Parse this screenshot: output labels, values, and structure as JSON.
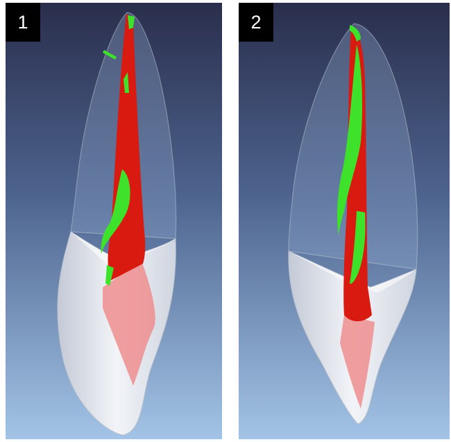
{
  "panels": [
    {
      "label": "1"
    },
    {
      "label": "2"
    }
  ],
  "colors": {
    "background_top": "#2a2e4c",
    "background_bottom": "#a3c4e6",
    "canal_filling": "#d81a10",
    "residual_debris": "#3ee22a",
    "root_tissue": "#e9ecf2",
    "crown_outline": "#c8d0dc"
  }
}
